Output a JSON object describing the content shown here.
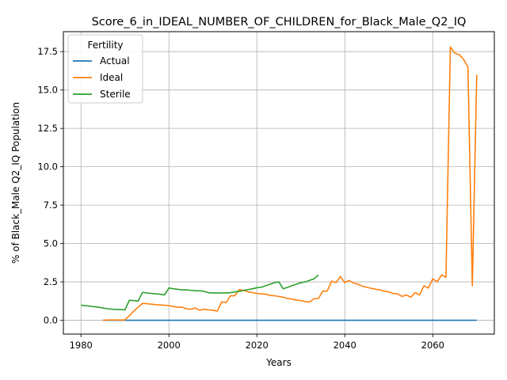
{
  "chart_data": {
    "type": "line",
    "title": "Score_6_in_IDEAL_NUMBER_OF_CHILDREN_for_Black_Male_Q2_IQ",
    "xlabel": "Years",
    "ylabel": "% of Black_Male Q2_IQ Population",
    "xlim": [
      1976,
      2074
    ],
    "ylim": [
      -0.9,
      18.8
    ],
    "x_ticks": [
      1980,
      2000,
      2020,
      2040,
      2060
    ],
    "y_ticks": [
      0.0,
      2.5,
      5.0,
      7.5,
      10.0,
      12.5,
      15.0,
      17.5
    ],
    "y_tick_labels": [
      "0.0",
      "2.5",
      "5.0",
      "7.5",
      "10.0",
      "12.5",
      "15.0",
      "17.5"
    ],
    "grid": true,
    "legend": {
      "title": "Fertility",
      "placement": "top-left"
    },
    "series": [
      {
        "name": "Actual",
        "color": "#1f77b4",
        "x": [
          1985,
          2070
        ],
        "y": [
          0.0,
          0.0
        ]
      },
      {
        "name": "Ideal",
        "color": "#ff7f0e",
        "x": [
          1985,
          1986,
          1987,
          1988,
          1989,
          1990,
          1991,
          1992,
          1993,
          1994,
          1995,
          1996,
          1997,
          1998,
          1999,
          2000,
          2001,
          2002,
          2003,
          2004,
          2005,
          2006,
          2007,
          2008,
          2009,
          2010,
          2011,
          2012,
          2013,
          2014,
          2015,
          2016,
          2017,
          2018,
          2019,
          2020,
          2021,
          2022,
          2023,
          2024,
          2025,
          2026,
          2027,
          2028,
          2029,
          2030,
          2031,
          2032,
          2033,
          2034,
          2035,
          2036,
          2037,
          2038,
          2039,
          2040,
          2041,
          2042,
          2043,
          2044,
          2045,
          2046,
          2047,
          2048,
          2049,
          2050,
          2051,
          2052,
          2053,
          2054,
          2055,
          2056,
          2057,
          2058,
          2059,
          2060,
          2061,
          2062,
          2063,
          2064,
          2065,
          2066,
          2067,
          2068,
          2069,
          2070
        ],
        "y": [
          0.0,
          0.02,
          0.02,
          0.02,
          0.02,
          0.02,
          0.3,
          0.6,
          0.85,
          1.1,
          1.08,
          1.05,
          1.02,
          1.0,
          0.98,
          0.95,
          0.9,
          0.85,
          0.85,
          0.75,
          0.72,
          0.8,
          0.65,
          0.72,
          0.68,
          0.65,
          0.6,
          1.2,
          1.15,
          1.6,
          1.6,
          2.0,
          1.95,
          1.85,
          1.8,
          1.75,
          1.72,
          1.7,
          1.62,
          1.6,
          1.55,
          1.5,
          1.42,
          1.38,
          1.32,
          1.28,
          1.22,
          1.2,
          1.4,
          1.42,
          1.9,
          1.9,
          2.55,
          2.45,
          2.85,
          2.45,
          2.6,
          2.42,
          2.35,
          2.22,
          2.15,
          2.08,
          2.02,
          1.98,
          1.9,
          1.85,
          1.75,
          1.72,
          1.55,
          1.65,
          1.5,
          1.8,
          1.65,
          2.25,
          2.1,
          2.7,
          2.5,
          2.95,
          2.8,
          17.8,
          17.4,
          17.3,
          17.0,
          16.5,
          2.25,
          16.0
        ]
      },
      {
        "name": "Sterile",
        "color": "#2ca02c",
        "x": [
          1980,
          1981,
          1982,
          1983,
          1984,
          1985,
          1986,
          1987,
          1988,
          1989,
          1990,
          1991,
          1992,
          1993,
          1994,
          1995,
          1996,
          1997,
          1998,
          1999,
          2000,
          2001,
          2002,
          2003,
          2004,
          2005,
          2006,
          2007,
          2008,
          2009,
          2010,
          2011,
          2012,
          2013,
          2014,
          2015,
          2016,
          2017,
          2018,
          2019,
          2020,
          2021,
          2022,
          2023,
          2024,
          2025,
          2026,
          2027,
          2028,
          2029,
          2030,
          2031,
          2032,
          2033,
          2034
        ],
        "y": [
          0.98,
          0.95,
          0.92,
          0.88,
          0.85,
          0.8,
          0.75,
          0.72,
          0.7,
          0.7,
          0.68,
          1.3,
          1.28,
          1.25,
          1.82,
          1.78,
          1.75,
          1.72,
          1.7,
          1.65,
          2.1,
          2.05,
          2.02,
          1.98,
          1.98,
          1.95,
          1.92,
          1.92,
          1.88,
          1.8,
          1.78,
          1.78,
          1.78,
          1.78,
          1.8,
          1.85,
          1.88,
          1.95,
          2.0,
          2.05,
          2.12,
          2.15,
          2.25,
          2.35,
          2.45,
          2.5,
          2.05,
          2.15,
          2.25,
          2.35,
          2.45,
          2.5,
          2.6,
          2.7,
          2.95
        ]
      }
    ]
  }
}
